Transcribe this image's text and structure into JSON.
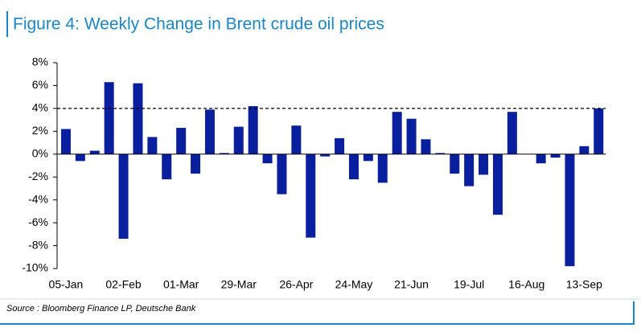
{
  "chart_data": {
    "type": "bar",
    "title": "Figure 4: Weekly Change in Brent crude oil prices",
    "source": "Source : Bloomberg Finance LP, Deutsche Bank",
    "categories": [
      "05-Jan",
      null,
      null,
      null,
      "02-Feb",
      null,
      null,
      null,
      "01-Mar",
      null,
      null,
      null,
      "29-Mar",
      null,
      null,
      null,
      "26-Apr",
      null,
      null,
      null,
      "24-May",
      null,
      null,
      null,
      "21-Jun",
      null,
      null,
      null,
      "19-Jul",
      null,
      null,
      null,
      "16-Aug",
      null,
      null,
      null,
      "13-Sep",
      null
    ],
    "values": [
      2.2,
      -0.6,
      0.3,
      6.3,
      -7.4,
      6.2,
      1.5,
      -2.2,
      2.3,
      -1.7,
      3.9,
      0.1,
      2.4,
      4.2,
      -0.8,
      -3.5,
      2.5,
      -7.3,
      -0.2,
      1.4,
      -2.2,
      -0.6,
      -2.5,
      3.7,
      3.1,
      1.3,
      0.1,
      -1.7,
      -2.8,
      -1.8,
      -5.3,
      3.7,
      0,
      -0.8,
      -0.3,
      -9.8,
      0.7,
      4.0
    ],
    "color": "#0a1f9e",
    "reference_line": 4,
    "ylim": [
      -10,
      8
    ],
    "yticks": [
      {
        "value": -10,
        "label": "-10%"
      },
      {
        "value": -8,
        "label": "-8%"
      },
      {
        "value": -6,
        "label": "-6%"
      },
      {
        "value": -4,
        "label": "-4%"
      },
      {
        "value": -2,
        "label": "-2%"
      },
      {
        "value": 0,
        "label": "0%"
      },
      {
        "value": 2,
        "label": "2%"
      },
      {
        "value": 4,
        "label": "4%"
      },
      {
        "value": 6,
        "label": "6%"
      },
      {
        "value": 8,
        "label": "8%"
      }
    ]
  }
}
